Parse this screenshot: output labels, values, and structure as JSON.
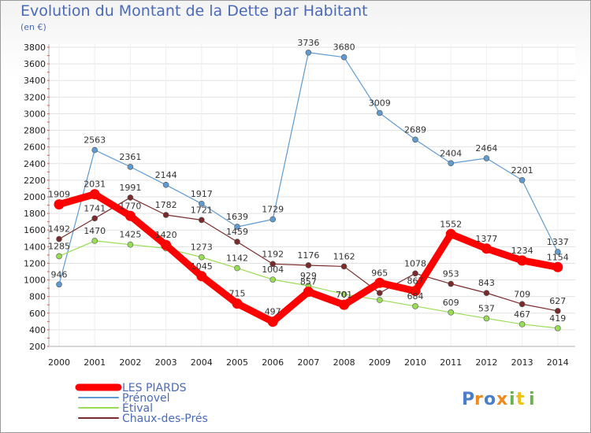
{
  "title": "Evolution du Montant de la Dette par Habitant",
  "subtitle": "(en €)",
  "logo": "Proxiti",
  "chart_data": {
    "type": "line",
    "title": "Evolution du Montant de la Dette par Habitant",
    "subtitle": "(en €)",
    "xlabel": "",
    "ylabel": "",
    "x": [
      "2000",
      "2001",
      "2002",
      "2003",
      "2004",
      "2005",
      "2006",
      "2007",
      "2008",
      "2009",
      "2010",
      "2011",
      "2012",
      "2013",
      "2014"
    ],
    "ylim": [
      200,
      3800
    ],
    "yticks": [
      200,
      400,
      600,
      800,
      1000,
      1200,
      1400,
      1600,
      1800,
      2000,
      2200,
      2400,
      2600,
      2800,
      3000,
      3200,
      3400,
      3600,
      3800
    ],
    "grid": true,
    "legend_position": "bottom-left",
    "series": [
      {
        "name": "LES PIARDS",
        "color": "#ff0000",
        "values": [
          1909,
          2031,
          1770,
          1420,
          1045,
          715,
          497,
          857,
          701,
          965,
          867,
          1552,
          1377,
          1234,
          1154
        ],
        "labels": [
          "1909",
          "2031",
          "1770",
          "1420",
          "1045",
          "715",
          "497",
          "857",
          "701",
          "965",
          "867",
          "1552",
          "1377",
          "1234",
          "1154"
        ]
      },
      {
        "name": "Prénovel",
        "color": "#5f9bd0",
        "values": [
          946,
          2563,
          2361,
          2144,
          1917,
          1639,
          1729,
          3736,
          3680,
          3009,
          2689,
          2404,
          2464,
          2201,
          1337
        ],
        "labels": [
          "946",
          "2563",
          "2361",
          "2144",
          "1917",
          "1639",
          "1729",
          "3736",
          "3680",
          "3009",
          "2689",
          "2404",
          "2464",
          "2201",
          "1337"
        ]
      },
      {
        "name": "Étival",
        "color": "#99dd55",
        "values": [
          1285,
          1470,
          1425,
          1380,
          1273,
          1142,
          1004,
          929,
          828,
          758,
          684,
          609,
          537,
          467,
          419
        ],
        "labels": [
          "1285",
          "1470",
          "1425",
          "",
          "1273",
          "1142",
          "1004",
          "929",
          "",
          "",
          "684",
          "609",
          "537",
          "467",
          "419"
        ]
      },
      {
        "name": "Chaux-des-Prés",
        "color": "#7a2a2a",
        "values": [
          1492,
          1741,
          1991,
          1782,
          1721,
          1459,
          1192,
          1176,
          1162,
          843,
          1078,
          953,
          843,
          709,
          627
        ],
        "labels": [
          "1492",
          "1741",
          "1991",
          "1782",
          "1721",
          "1459",
          "1192",
          "1176",
          "1162",
          "",
          "1078",
          "953",
          "843",
          "709",
          "627"
        ]
      }
    ]
  }
}
